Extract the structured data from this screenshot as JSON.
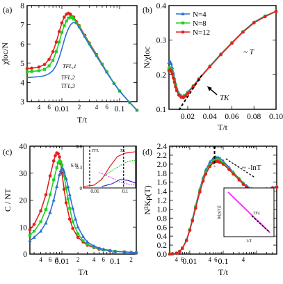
{
  "chart_data": [
    {
      "panel": "(a)",
      "type": "line",
      "xscale": "log",
      "xlabel": "T/t",
      "ylabel": "χloc/N",
      "xlim": [
        0.0025,
        0.2
      ],
      "ylim": [
        3,
        8
      ],
      "yticks": [
        3,
        4,
        5,
        6,
        7,
        8
      ],
      "xtick_labels": [
        {
          "x": 0.004,
          "label": "4"
        },
        {
          "x": 0.006,
          "label": "6"
        },
        {
          "x": 0.01,
          "label": "0.01"
        },
        {
          "x": 0.02,
          "label": "2"
        },
        {
          "x": 0.04,
          "label": "4"
        },
        {
          "x": 0.06,
          "label": "6"
        },
        {
          "x": 0.1,
          "label": "0.1"
        }
      ],
      "annotations": [
        "TFL,1",
        "TFL,2",
        "TFL,3"
      ],
      "series": [
        {
          "color": "#e02020",
          "marker": "circle",
          "x": [
            0.0025,
            0.003,
            0.004,
            0.005,
            0.006,
            0.007,
            0.008,
            0.009,
            0.01,
            0.011,
            0.012,
            0.013,
            0.014,
            0.016,
            0.018,
            0.02,
            0.025,
            0.03,
            0.04,
            0.05,
            0.06,
            0.08,
            0.1,
            0.15,
            0.2
          ],
          "y": [
            4.72,
            4.74,
            4.8,
            4.93,
            5.2,
            5.6,
            6.1,
            6.65,
            7.1,
            7.4,
            7.55,
            7.6,
            7.55,
            7.4,
            7.15,
            6.95,
            6.45,
            6.05,
            5.45,
            4.95,
            4.55,
            3.95,
            3.55,
            2.95,
            2.55
          ]
        },
        {
          "color": "#20d020",
          "marker": "square",
          "x": [
            0.0025,
            0.003,
            0.004,
            0.005,
            0.006,
            0.007,
            0.008,
            0.009,
            0.01,
            0.011,
            0.012,
            0.013,
            0.014,
            0.015,
            0.016,
            0.018,
            0.02,
            0.025,
            0.03,
            0.04,
            0.05,
            0.06,
            0.08,
            0.1,
            0.15,
            0.2
          ],
          "y": [
            4.55,
            4.57,
            4.61,
            4.68,
            4.86,
            5.15,
            5.6,
            6.1,
            6.6,
            6.95,
            7.2,
            7.35,
            7.4,
            7.38,
            7.3,
            7.1,
            6.9,
            6.4,
            6.0,
            5.4,
            4.95,
            4.55,
            3.95,
            3.55,
            2.95,
            2.55
          ]
        },
        {
          "color": "#2a6fd6",
          "marker": "none",
          "x": [
            0.0025,
            0.003,
            0.004,
            0.005,
            0.006,
            0.007,
            0.008,
            0.009,
            0.01,
            0.011,
            0.012,
            0.013,
            0.014,
            0.015,
            0.016,
            0.017,
            0.018,
            0.02,
            0.025,
            0.03,
            0.04,
            0.05,
            0.06,
            0.08,
            0.1,
            0.15,
            0.2
          ],
          "y": [
            4.25,
            4.27,
            4.3,
            4.35,
            4.45,
            4.62,
            4.9,
            5.3,
            5.75,
            6.2,
            6.55,
            6.8,
            6.98,
            7.08,
            7.12,
            7.1,
            7.05,
            6.85,
            6.35,
            5.95,
            5.35,
            4.9,
            4.5,
            3.95,
            3.55,
            2.95,
            2.55
          ]
        }
      ]
    },
    {
      "panel": "(b)",
      "type": "line",
      "xscale": "linear",
      "xlabel": "T/t",
      "ylabel": "N/χloc",
      "xlim": [
        0.003,
        0.1
      ],
      "ylim": [
        0.1,
        0.4
      ],
      "xticks": [
        "0.02",
        "0.04",
        "0.06",
        "0.08",
        "0.10"
      ],
      "yticks": [
        "0.1",
        "0.2",
        "0.3",
        "0.4"
      ],
      "legend": [
        "N=4",
        "N=8",
        "N=12"
      ],
      "legend_position": "top-left",
      "annotations": [
        "~ T",
        "TK"
      ],
      "series": [
        {
          "name": "N=4",
          "color": "#2a6fd6",
          "marker": "triangle",
          "x": [
            0.003,
            0.004,
            0.005,
            0.006,
            0.007,
            0.008,
            0.009,
            0.01,
            0.012,
            0.014,
            0.016,
            0.018,
            0.02,
            0.025,
            0.03,
            0.04,
            0.05,
            0.06,
            0.07,
            0.08,
            0.09,
            0.1
          ],
          "y": [
            0.235,
            0.238,
            0.232,
            0.22,
            0.205,
            0.19,
            0.175,
            0.162,
            0.147,
            0.14,
            0.139,
            0.142,
            0.15,
            0.168,
            0.188,
            0.225,
            0.26,
            0.293,
            0.325,
            0.352,
            0.37,
            0.384
          ]
        },
        {
          "name": "N=8",
          "color": "#20d020",
          "marker": "square",
          "x": [
            0.003,
            0.004,
            0.005,
            0.006,
            0.007,
            0.008,
            0.009,
            0.01,
            0.012,
            0.014,
            0.016,
            0.018,
            0.02,
            0.025,
            0.03,
            0.04,
            0.05,
            0.06,
            0.07,
            0.08,
            0.09,
            0.1
          ],
          "y": [
            0.218,
            0.22,
            0.216,
            0.208,
            0.195,
            0.183,
            0.169,
            0.157,
            0.143,
            0.137,
            0.136,
            0.14,
            0.148,
            0.167,
            0.187,
            0.224,
            0.259,
            0.292,
            0.324,
            0.351,
            0.369,
            0.384
          ]
        },
        {
          "name": "N=12",
          "color": "#e02020",
          "marker": "circle",
          "x": [
            0.003,
            0.004,
            0.005,
            0.006,
            0.007,
            0.008,
            0.009,
            0.01,
            0.012,
            0.014,
            0.016,
            0.018,
            0.02,
            0.025,
            0.03,
            0.04,
            0.05,
            0.06,
            0.07,
            0.08,
            0.09,
            0.1
          ],
          "y": [
            0.212,
            0.214,
            0.21,
            0.202,
            0.19,
            0.178,
            0.165,
            0.154,
            0.141,
            0.135,
            0.134,
            0.138,
            0.146,
            0.166,
            0.186,
            0.223,
            0.258,
            0.291,
            0.323,
            0.35,
            0.368,
            0.383
          ]
        }
      ]
    },
    {
      "panel": "(c)",
      "type": "line",
      "xscale": "log",
      "xlabel": "T/t",
      "ylabel": "C / NT",
      "xlim": [
        0.0025,
        0.25
      ],
      "ylim": [
        0,
        40
      ],
      "yticks": [
        0,
        10,
        20,
        30,
        40
      ],
      "xtick_labels": [
        {
          "x": 0.004,
          "label": "4"
        },
        {
          "x": 0.006,
          "label": "6"
        },
        {
          "x": 0.008,
          "label": "8"
        },
        {
          "x": 0.01,
          "label": "0.01"
        },
        {
          "x": 0.02,
          "label": "2"
        },
        {
          "x": 0.04,
          "label": "4"
        },
        {
          "x": 0.06,
          "label": "6"
        },
        {
          "x": 0.1,
          "label": "0.1"
        },
        {
          "x": 0.2,
          "label": "2"
        }
      ],
      "inset": {
        "ylabel": "S/N",
        "yticks": [
          "0",
          "0.3",
          "0.6"
        ],
        "xticks": [
          "0.01",
          "0.1"
        ],
        "annotations": [
          "TFL",
          "TK"
        ]
      },
      "series": [
        {
          "color": "#e02020",
          "marker": "circle",
          "x": [
            0.0025,
            0.003,
            0.004,
            0.005,
            0.006,
            0.007,
            0.0075,
            0.008,
            0.0085,
            0.009,
            0.0095,
            0.01,
            0.011,
            0.012,
            0.014,
            0.016,
            0.02,
            0.025,
            0.03,
            0.04,
            0.05,
            0.06,
            0.08,
            0.1,
            0.15,
            0.2,
            0.25
          ],
          "y": [
            9,
            11,
            16,
            22,
            29,
            34.5,
            36.5,
            37.5,
            37.2,
            36,
            33.5,
            30,
            24,
            19,
            13,
            9.5,
            6.2,
            4.5,
            3.3,
            2.4,
            1.8,
            1.5,
            1.2,
            1.0,
            0.8,
            0.6,
            0.5
          ]
        },
        {
          "color": "#20d020",
          "marker": "square",
          "x": [
            0.0025,
            0.003,
            0.004,
            0.005,
            0.006,
            0.007,
            0.008,
            0.0085,
            0.009,
            0.0095,
            0.01,
            0.011,
            0.012,
            0.013,
            0.014,
            0.016,
            0.02,
            0.025,
            0.03,
            0.04,
            0.05,
            0.06,
            0.08,
            0.1,
            0.15,
            0.2,
            0.25
          ],
          "y": [
            7,
            8.5,
            12,
            16.5,
            22,
            27.5,
            32,
            33.8,
            34.5,
            34.2,
            33,
            29,
            24.5,
            20.5,
            17,
            12,
            7.5,
            5,
            3.7,
            2.6,
            2,
            1.6,
            1.3,
            1.0,
            0.8,
            0.6,
            0.5
          ]
        },
        {
          "color": "#2a6fd6",
          "marker": "triangle",
          "x": [
            0.0025,
            0.003,
            0.004,
            0.005,
            0.006,
            0.007,
            0.008,
            0.009,
            0.0095,
            0.01,
            0.0105,
            0.011,
            0.012,
            0.013,
            0.014,
            0.016,
            0.018,
            0.02,
            0.025,
            0.03,
            0.04,
            0.05,
            0.06,
            0.08,
            0.1,
            0.15,
            0.2,
            0.25
          ],
          "y": [
            5,
            6.2,
            8.5,
            11.5,
            15.5,
            20,
            25,
            29.5,
            31,
            31.7,
            31.5,
            30.5,
            28,
            25,
            22,
            17,
            13,
            10,
            6.5,
            4.5,
            3,
            2.2,
            1.8,
            1.3,
            1.0,
            0.8,
            0.6,
            0.5
          ]
        }
      ]
    },
    {
      "panel": "(d)",
      "type": "line",
      "xscale": "log",
      "xlabel": "T/t",
      "ylabel": "N²Kρ(T)",
      "xlim": [
        0.0025,
        4
      ],
      "ylim": [
        0,
        2.4
      ],
      "yticks": [
        0.0,
        0.2,
        0.4,
        0.6,
        0.8,
        1.0,
        1.2,
        1.4,
        1.6,
        1.8,
        2.0,
        2.2,
        2.4
      ],
      "xtick_labels": [
        {
          "x": 0.004,
          "label": "4"
        },
        {
          "x": 0.006,
          "label": "6"
        },
        {
          "x": 0.01,
          "label": "0.01"
        },
        {
          "x": 0.04,
          "label": "4"
        },
        {
          "x": 0.06,
          "label": "6"
        },
        {
          "x": 0.1,
          "label": "0.1"
        },
        {
          "x": 0.4,
          "label": "4"
        }
      ],
      "annotations": [
        "~ -lnT"
      ],
      "inset": {
        "ylabel": "ln[ρ(T)]",
        "xlabel": "1/T",
        "annotations": [
          "TFL"
        ]
      },
      "series": [
        {
          "color": "#2a6fd6",
          "marker": "triangle",
          "x": [
            0.0025,
            0.003,
            0.004,
            0.005,
            0.006,
            0.008,
            0.01,
            0.012,
            0.015,
            0.02,
            0.025,
            0.03,
            0.04,
            0.05,
            0.06,
            0.07,
            0.08,
            0.1,
            0.15,
            0.2,
            0.3,
            0.4,
            0.5,
            0.7,
            1,
            1.5,
            2,
            3,
            4
          ],
          "y": [
            0,
            0.005,
            0.02,
            0.06,
            0.13,
            0.32,
            0.55,
            0.78,
            1.08,
            1.45,
            1.7,
            1.87,
            2.05,
            2.13,
            2.16,
            2.15,
            2.13,
            2.07,
            1.93,
            1.82,
            1.68,
            1.58,
            1.52,
            1.45,
            1.42,
            1.43,
            1.45,
            1.48,
            1.5
          ]
        },
        {
          "color": "#20d020",
          "marker": "square",
          "x": [
            0.0025,
            0.003,
            0.004,
            0.005,
            0.006,
            0.008,
            0.01,
            0.012,
            0.015,
            0.02,
            0.025,
            0.03,
            0.04,
            0.05,
            0.06,
            0.07,
            0.08,
            0.1,
            0.15,
            0.2,
            0.3,
            0.4,
            0.5,
            0.7,
            1,
            1.5,
            2,
            3,
            4
          ],
          "y": [
            0,
            0.005,
            0.02,
            0.06,
            0.13,
            0.31,
            0.54,
            0.76,
            1.05,
            1.41,
            1.65,
            1.82,
            1.99,
            2.07,
            2.1,
            2.1,
            2.08,
            2.03,
            1.9,
            1.8,
            1.66,
            1.56,
            1.5,
            1.44,
            1.41,
            1.42,
            1.44,
            1.47,
            1.49
          ]
        },
        {
          "color": "#e02020",
          "marker": "circle",
          "x": [
            0.0025,
            0.003,
            0.004,
            0.005,
            0.006,
            0.008,
            0.01,
            0.012,
            0.015,
            0.02,
            0.025,
            0.03,
            0.04,
            0.05,
            0.06,
            0.07,
            0.08,
            0.1,
            0.15,
            0.2,
            0.3,
            0.4,
            0.5,
            0.7,
            1,
            1.5,
            2,
            3,
            4
          ],
          "y": [
            0,
            0.005,
            0.02,
            0.06,
            0.13,
            0.3,
            0.53,
            0.74,
            1.02,
            1.38,
            1.62,
            1.78,
            1.95,
            2.03,
            2.06,
            2.06,
            2.04,
            2.0,
            1.88,
            1.78,
            1.65,
            1.55,
            1.49,
            1.43,
            1.41,
            1.42,
            1.44,
            1.47,
            1.49
          ]
        }
      ]
    }
  ]
}
